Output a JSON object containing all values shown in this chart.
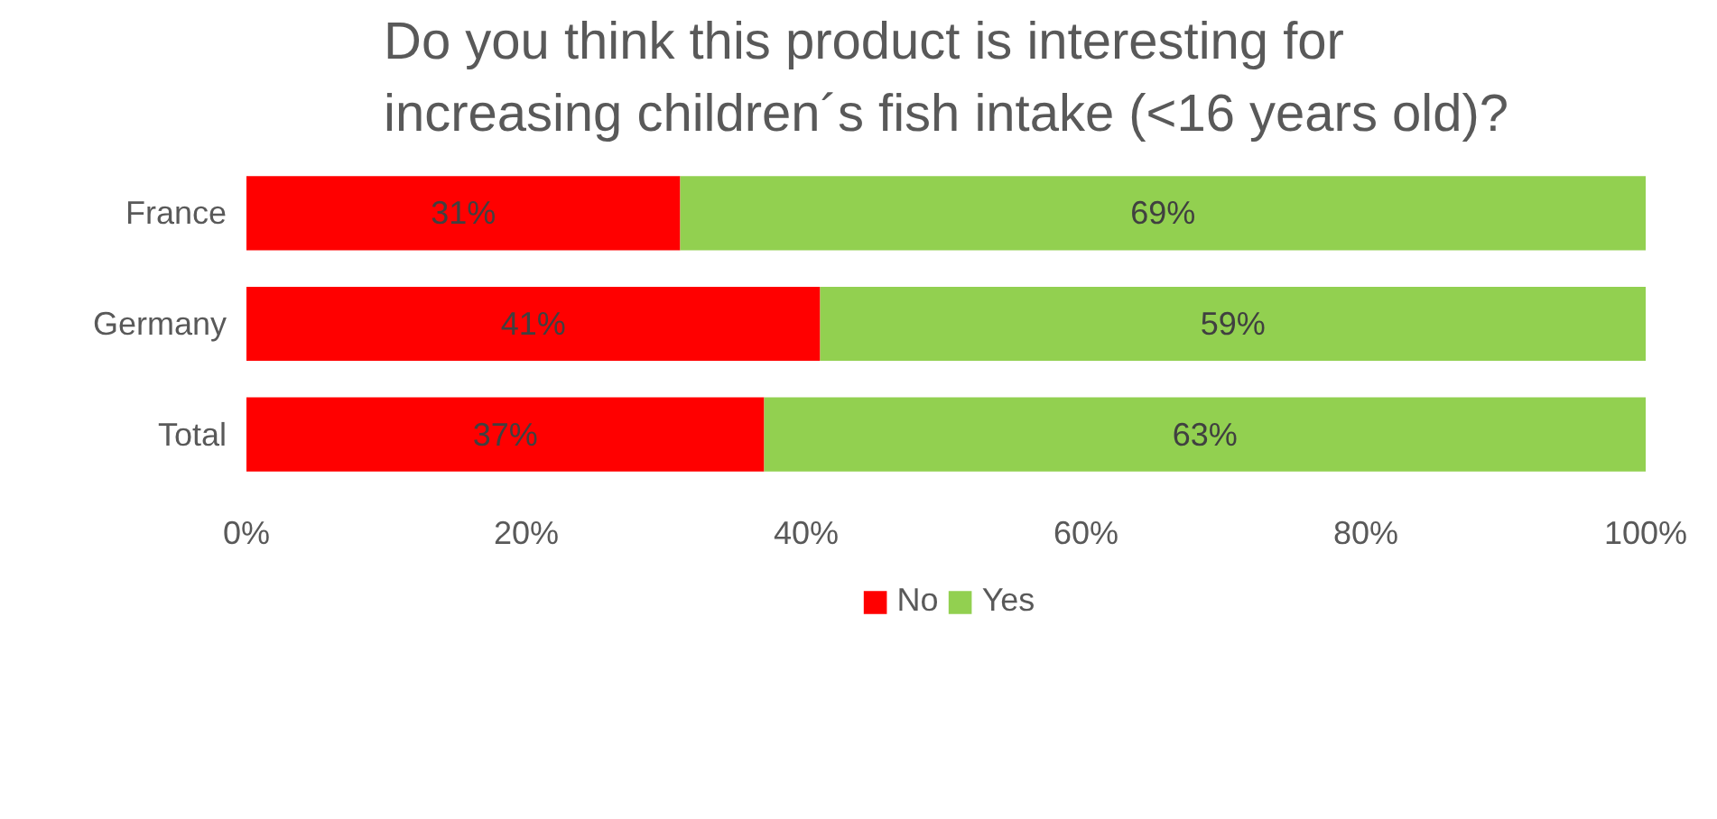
{
  "chart_data": {
    "type": "bar",
    "orientation": "horizontal",
    "stacked": true,
    "title": "Do you think this product is interesting for increasing children´s fish intake (<16 years old)?",
    "categories": [
      "France",
      "Germany",
      "Total"
    ],
    "series": [
      {
        "name": "No",
        "color": "#ff0000",
        "values": [
          31,
          41,
          37
        ],
        "value_labels": [
          "31%",
          "41%",
          "37%"
        ]
      },
      {
        "name": "Yes",
        "color": "#92d050",
        "values": [
          69,
          59,
          63
        ],
        "value_labels": [
          "69%",
          "59%",
          "63%"
        ]
      }
    ],
    "xlim": [
      0,
      100
    ],
    "xticks": [
      {
        "value": 0,
        "label": "0%"
      },
      {
        "value": 20,
        "label": "20%"
      },
      {
        "value": 40,
        "label": "40%"
      },
      {
        "value": 60,
        "label": "60%"
      },
      {
        "value": 80,
        "label": "80%"
      },
      {
        "value": 100,
        "label": "100%"
      }
    ],
    "grid": false,
    "legend": "bottom"
  }
}
